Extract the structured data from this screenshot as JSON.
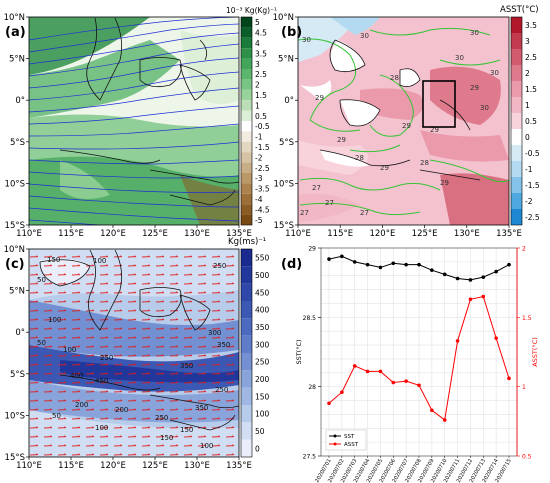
{
  "panels": {
    "a": {
      "label": "(a)",
      "cbar_title": "10⁻³ Kg(Kg)⁻¹",
      "cbar_ticks": [
        "5",
        "4.5",
        "4",
        "3.5",
        "3",
        "2.5",
        "2",
        "1.5",
        "1",
        "0.5",
        "-0.5",
        "-1",
        "-1.5",
        "-2",
        "-2.5",
        "-3",
        "-3.5",
        "-4",
        "-4.5",
        "-5"
      ],
      "cbar_colors": [
        "#00441b",
        "#0b5d2a",
        "#1a7a3a",
        "#2e8f48",
        "#43a55a",
        "#5bb56d",
        "#78c583",
        "#98d39b",
        "#badfb6",
        "#dbeed6",
        "#ffffff",
        "#f1ebe0",
        "#e3d7c2",
        "#d6c3a4",
        "#c8ae86",
        "#ba9868",
        "#ac834e",
        "#9d6f38",
        "#8c5c25",
        "#7a4a15"
      ]
    },
    "b": {
      "label": "(b)",
      "cbar_title": "ASST(°C)",
      "cbar_ticks": [
        "3.5",
        "3",
        "2.5",
        "2",
        "1.5",
        "1",
        "0.5",
        "0",
        "-0.5",
        "-1",
        "-1.5",
        "-2",
        "-2.5"
      ],
      "cbar_colors": [
        "#b2182b",
        "#c33b4e",
        "#d25b6e",
        "#df7a8c",
        "#ea9aab",
        "#f2b7c4",
        "#f8d3dc",
        "#ffffff",
        "#d6eaf6",
        "#b3daf1",
        "#85c3ea",
        "#4fa8e0",
        "#1f88d2"
      ],
      "contour_labels": [
        "30",
        "30",
        "29",
        "30",
        "29",
        "29",
        "29",
        "29",
        "28",
        "30",
        "27",
        "29",
        "28",
        "27",
        "30",
        "30",
        "28",
        "29",
        "27",
        "27"
      ]
    },
    "c": {
      "label": "(c)",
      "cbar_title": "Kg(ms)⁻¹",
      "cbar_ticks": [
        "550",
        "500",
        "450",
        "400",
        "350",
        "300",
        "250",
        "200",
        "150",
        "100",
        "50",
        "0"
      ],
      "cbar_colors": [
        "#1b2a8f",
        "#22379c",
        "#2e47a8",
        "#3a58b4",
        "#4b6ac0",
        "#5e7cc9",
        "#7290d2",
        "#88a4da",
        "#9fb7e2",
        "#b7cbea",
        "#d0ddf2",
        "#e9eefa"
      ],
      "contour_labels": [
        "150",
        "50",
        "100",
        "100",
        "250",
        "50",
        "100",
        "300",
        "350",
        "250",
        "400",
        "350",
        "450",
        "200",
        "250",
        "200",
        "250",
        "350",
        "150",
        "100",
        "150",
        "50",
        "100"
      ]
    },
    "d": {
      "label": "(d)"
    }
  },
  "map_axes": {
    "lon_labels": [
      "110°E",
      "115°E",
      "120°E",
      "125°E",
      "130°E",
      "135°E"
    ],
    "lat_labels": [
      "10°N",
      "5°N",
      "0°",
      "5°S",
      "10°S",
      "15°S"
    ]
  },
  "chart_data": {
    "type": "line",
    "categories": [
      "20200701",
      "20200702",
      "20200703",
      "20200704",
      "20200705",
      "20200706",
      "20200707",
      "20200708",
      "20200709",
      "20200710",
      "20200711",
      "20200712",
      "20200713",
      "20200714",
      "20200715"
    ],
    "series": [
      {
        "name": "SST",
        "axis": "left",
        "color": "#000000",
        "values": [
          28.92,
          28.94,
          28.9,
          28.88,
          28.86,
          28.89,
          28.88,
          28.88,
          28.84,
          28.81,
          28.78,
          28.77,
          28.79,
          28.83,
          28.88
        ]
      },
      {
        "name": "ASST",
        "axis": "right",
        "color": "#ff0000",
        "values": [
          0.88,
          0.96,
          1.15,
          1.11,
          1.11,
          1.03,
          1.04,
          1.01,
          0.83,
          0.76,
          1.33,
          1.63,
          1.65,
          1.35,
          1.06
        ]
      }
    ],
    "ylabel": "SST(°C)",
    "y2label": "ASST(°C)",
    "ylim": [
      27.5,
      29
    ],
    "y2lim": [
      0.5,
      2
    ],
    "yticks": [
      27.5,
      28,
      28.5,
      29
    ],
    "y2ticks": [
      0.5,
      1,
      1.5,
      2
    ],
    "grid": true,
    "legend": "bottom-left"
  }
}
